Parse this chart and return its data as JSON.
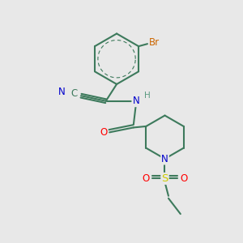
{
  "background_color": "#e8e8e8",
  "bond_color": "#3d7a5c",
  "bond_width": 1.5,
  "atom_colors": {
    "Br": "#cc6600",
    "N": "#0000cc",
    "O": "#ff0000",
    "S": "#cccc00",
    "C": "#3d7a5c",
    "H": "#5a9a80"
  },
  "font_size": 8.5,
  "fig_width": 3.0,
  "fig_height": 3.0,
  "xlim": [
    0,
    10
  ],
  "ylim": [
    0,
    10
  ]
}
